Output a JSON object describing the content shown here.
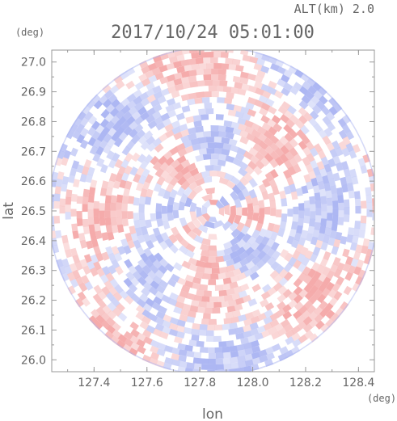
{
  "header": {
    "altitude_label": "ALT(km) 2.0",
    "timestamp": "2017/10/24 05:01:00"
  },
  "chart_data": {
    "type": "heatmap",
    "title": "2017/10/24 05:01:00",
    "xlabel": "lon",
    "ylabel": "lat",
    "x_unit": "(deg)",
    "y_unit": "(deg)",
    "xlim": [
      127.24,
      128.46
    ],
    "ylim": [
      25.96,
      27.04
    ],
    "x_ticks": [
      127.4,
      127.6,
      127.8,
      128.0,
      128.2,
      128.4
    ],
    "x_tick_labels": [
      "127.4",
      "127.6",
      "127.8",
      "128.0",
      "128.2",
      "128.4"
    ],
    "y_ticks": [
      26.0,
      26.1,
      26.2,
      26.3,
      26.4,
      26.5,
      26.6,
      26.7,
      26.8,
      26.9,
      27.0
    ],
    "y_tick_labels": [
      "26.0",
      "26.1",
      "26.2",
      "26.3",
      "26.4",
      "26.5",
      "26.6",
      "26.7",
      "26.8",
      "26.9",
      "27.0"
    ],
    "center": {
      "lon": 127.85,
      "lat": 26.5
    },
    "colors": {
      "positive": "#f4a6a6",
      "negative": "#a9b3f2",
      "neutral": "#ffffff",
      "axis": "#999999",
      "text": "#666666"
    }
  }
}
